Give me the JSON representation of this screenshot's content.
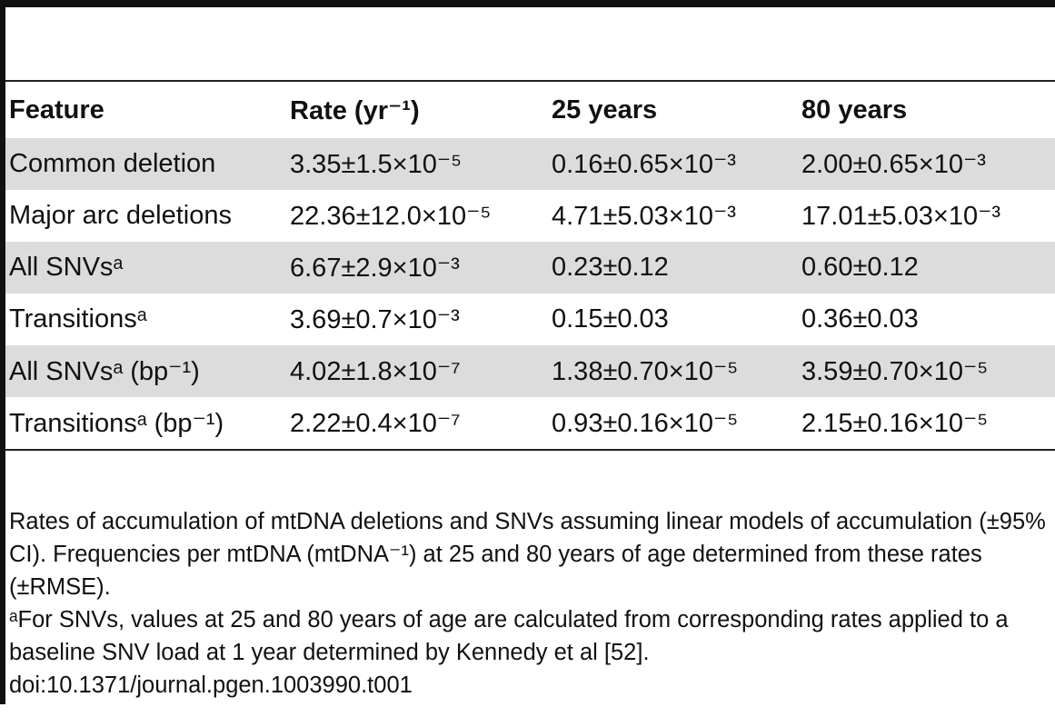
{
  "table": {
    "headers": [
      "Feature",
      "Rate (yr⁻¹)",
      "25 years",
      "80 years"
    ],
    "rows": [
      {
        "feature": "Common deletion",
        "rate": "3.35±1.5×10⁻⁵",
        "y25": "0.16±0.65×10⁻³",
        "y80": "2.00±0.65×10⁻³"
      },
      {
        "feature": "Major arc deletions",
        "rate": "22.36±12.0×10⁻⁵",
        "y25": "4.71±5.03×10⁻³",
        "y80": "17.01±5.03×10⁻³"
      },
      {
        "feature": "All SNVsᵃ",
        "rate": "6.67±2.9×10⁻³",
        "y25": "0.23±0.12",
        "y80": "0.60±0.12"
      },
      {
        "feature": "Transitionsᵃ",
        "rate": "3.69±0.7×10⁻³",
        "y25": "0.15±0.03",
        "y80": "0.36±0.03"
      },
      {
        "feature": "All SNVsᵃ (bp⁻¹)",
        "rate": "4.02±1.8×10⁻⁷",
        "y25": "1.38±0.70×10⁻⁵",
        "y80": "3.59±0.70×10⁻⁵"
      },
      {
        "feature": "Transitionsᵃ (bp⁻¹)",
        "rate": "2.22±0.4×10⁻⁷",
        "y25": "0.93±0.16×10⁻⁵",
        "y80": "2.15±0.16×10⁻⁵"
      }
    ]
  },
  "notes": {
    "caption": "Rates of accumulation of mtDNA deletions and SNVs assuming linear models of accumulation (±95% CI). Frequencies per mtDNA (mtDNA⁻¹) at 25 and 80 years of age determined from these rates (±RMSE).",
    "footnote": "ᵃFor SNVs, values at 25 and 80 years of age are calculated from corresponding rates applied to a baseline SNV load at 1 year determined by Kennedy et al [52].",
    "doi": "doi:10.1371/journal.pgen.1003990.t001"
  }
}
